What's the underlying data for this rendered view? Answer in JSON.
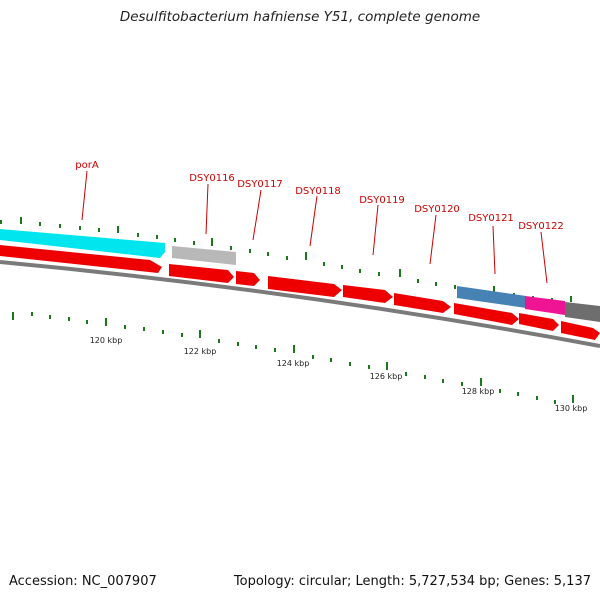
{
  "title": "Desulfitobacterium hafniense Y51, complete genome",
  "footer": {
    "accession": "Accession: NC_007907",
    "stats": "Topology: circular; Length: 5,727,534 bp; Genes: 5,137"
  },
  "colors": {
    "label": "#cc0000",
    "tick": "#1a7a1a",
    "backbone": "#7a7a7a",
    "cds_red": "#ee0000",
    "cds_cyan": "#00e5ee",
    "cds_gray": "#b8b8b8",
    "cds_blue": "#4682b4",
    "cds_magenta": "#ee1493",
    "cds_dark": "#6e6e6e"
  },
  "genes_labeled": [
    {
      "name": "porA"
    },
    {
      "name": "DSY0116"
    },
    {
      "name": "DSY0117"
    },
    {
      "name": "DSY0118"
    },
    {
      "name": "DSY0119"
    },
    {
      "name": "DSY0120"
    },
    {
      "name": "DSY0121"
    },
    {
      "name": "DSY0122"
    }
  ],
  "scale_labels": [
    "120 kbp",
    "122 kbp",
    "124 kbp",
    "126 kbp",
    "128 kbp",
    "130 kbp"
  ]
}
